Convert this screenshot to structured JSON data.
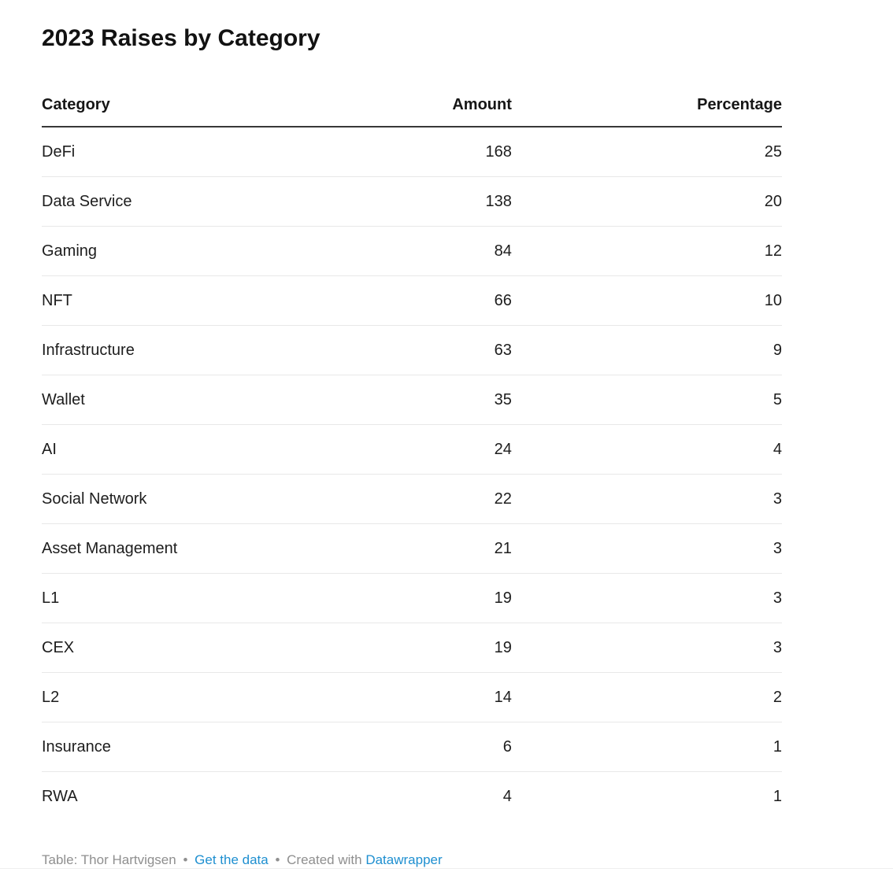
{
  "title": "2023 Raises by Category",
  "chart_data": {
    "type": "table",
    "title": "2023 Raises by Category",
    "columns": [
      "Category",
      "Amount",
      "Percentage"
    ],
    "rows": [
      {
        "category": "DeFi",
        "amount": 168,
        "percentage": 25
      },
      {
        "category": "Data Service",
        "amount": 138,
        "percentage": 20
      },
      {
        "category": "Gaming",
        "amount": 84,
        "percentage": 12
      },
      {
        "category": "NFT",
        "amount": 66,
        "percentage": 10
      },
      {
        "category": "Infrastructure",
        "amount": 63,
        "percentage": 9
      },
      {
        "category": "Wallet",
        "amount": 35,
        "percentage": 5
      },
      {
        "category": "AI",
        "amount": 24,
        "percentage": 4
      },
      {
        "category": "Social Network",
        "amount": 22,
        "percentage": 3
      },
      {
        "category": "Asset Management",
        "amount": 21,
        "percentage": 3
      },
      {
        "category": "L1",
        "amount": 19,
        "percentage": 3
      },
      {
        "category": "CEX",
        "amount": 19,
        "percentage": 3
      },
      {
        "category": "L2",
        "amount": 14,
        "percentage": 2
      },
      {
        "category": "Insurance",
        "amount": 6,
        "percentage": 1
      },
      {
        "category": "RWA",
        "amount": 4,
        "percentage": 1
      }
    ]
  },
  "footer": {
    "credit": "Table: Thor Hartvigsen",
    "separator": "•",
    "get_data_label": "Get the data",
    "created_with": "Created with",
    "tool_label": "Datawrapper"
  },
  "colors": {
    "link": "#1e8fd0",
    "footer_text": "#8f8f8f",
    "header_rule": "#383838",
    "row_divider": "#e8e8e8",
    "text": "#1d1d1d"
  }
}
